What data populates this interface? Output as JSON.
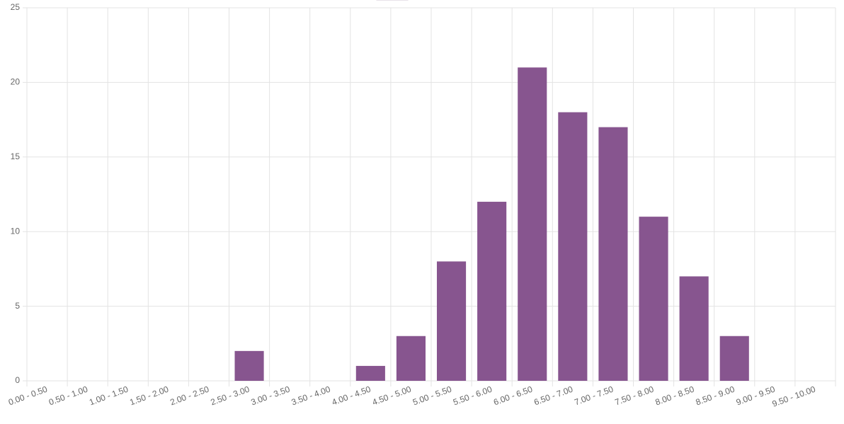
{
  "chart_data": {
    "type": "bar",
    "categories": [
      "0.00 - 0.50",
      "0.50 - 1.00",
      "1.00 - 1.50",
      "1.50 - 2.00",
      "2.00 - 2.50",
      "2.50 - 3.00",
      "3.00 - 3.50",
      "3.50 - 4.00",
      "4.00 - 4.50",
      "4.50 - 5.00",
      "5.00 - 5.50",
      "5.50 - 6.00",
      "6.00 - 6.50",
      "6.50 - 7.00",
      "7.00 - 7.50",
      "7.50 - 8.00",
      "8.00 - 8.50",
      "8.50 - 9.00",
      "9.00 - 9.50",
      "9.50 - 10.00"
    ],
    "values": [
      0,
      0,
      0,
      0,
      0,
      2,
      0,
      0,
      1,
      3,
      8,
      12,
      21,
      18,
      17,
      11,
      7,
      3,
      0,
      0
    ],
    "color": "#87558f",
    "ylim": [
      0,
      25
    ],
    "yticks": [
      0,
      5,
      10,
      15,
      20,
      25
    ],
    "grid": true
  }
}
